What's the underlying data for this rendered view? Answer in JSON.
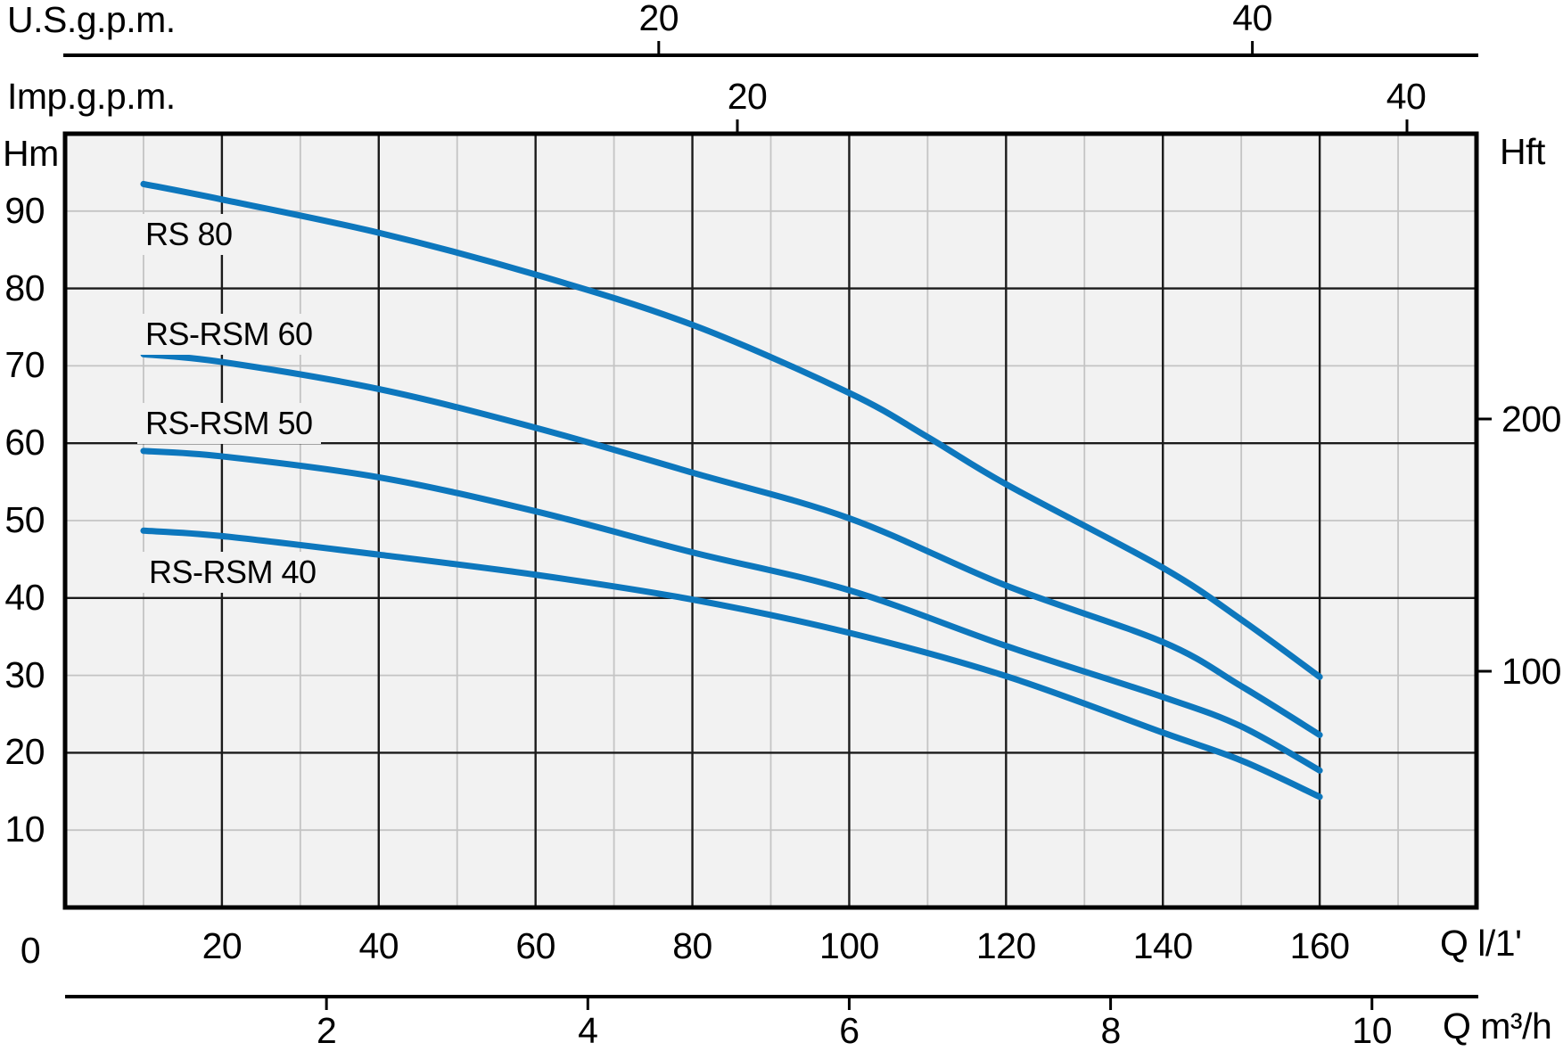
{
  "page": {
    "background": "#ffffff"
  },
  "colors": {
    "curve_blue": "#0d77bd",
    "plot_background": "#f2f2f2",
    "grid_light": "#c4c4c4",
    "grid_dark": "#1b1b1b",
    "axis_black": "#000000",
    "text": "#000000"
  },
  "labels": {
    "us_gpm_axis": "U.S.g.p.m.",
    "imp_gpm_axis": "Imp.g.p.m.",
    "head_m": "Hm",
    "head_ft": "Hft",
    "flow_lmin": "Q l/1'",
    "flow_m3h": "Q m³/h",
    "origin_zero": "0"
  },
  "chart_data": {
    "type": "line",
    "title": "",
    "x_axis": {
      "label": "Q l/1'",
      "unit": "litres per minute",
      "range": [
        0,
        180
      ],
      "ticks": [
        20,
        40,
        60,
        80,
        100,
        120,
        140,
        160
      ],
      "grid_step": 10,
      "grid": "on"
    },
    "y_axis": {
      "label": "Hm",
      "unit": "metres head",
      "range": [
        0,
        100
      ],
      "ticks": [
        90,
        80,
        70,
        60,
        50,
        40,
        30,
        20,
        10
      ],
      "grid_step": 10,
      "grid": "on"
    },
    "x_axis_top_us": {
      "label": "U.S.g.p.m.",
      "ticks": [
        20,
        40
      ]
    },
    "x_axis_top_imp": {
      "label": "Imp.g.p.m.",
      "ticks": [
        20,
        40
      ]
    },
    "x_axis_bottom_m3h": {
      "label": "Q m³/h",
      "ticks": [
        2,
        4,
        6,
        8,
        10
      ]
    },
    "y_axis_right_ft": {
      "label": "Hft",
      "ticks": [
        200,
        100
      ]
    },
    "legend_position": "labels-on-plot",
    "series": [
      {
        "name": "RS 80",
        "points": [
          [
            10,
            93.5
          ],
          [
            20,
            91.5
          ],
          [
            40,
            87.2
          ],
          [
            60,
            81.8
          ],
          [
            80,
            75.3
          ],
          [
            100,
            66.5
          ],
          [
            110,
            60.8
          ],
          [
            120,
            54.7
          ],
          [
            140,
            43.9
          ],
          [
            150,
            37.2
          ],
          [
            160,
            29.8
          ]
        ]
      },
      {
        "name": "RS-RSM 60",
        "points": [
          [
            10,
            71.5
          ],
          [
            20,
            70.5
          ],
          [
            40,
            67.0
          ],
          [
            60,
            62.0
          ],
          [
            80,
            56.2
          ],
          [
            100,
            50.3
          ],
          [
            120,
            41.6
          ],
          [
            140,
            34.3
          ],
          [
            150,
            28.6
          ],
          [
            160,
            22.3
          ]
        ]
      },
      {
        "name": "RS-RSM 50",
        "points": [
          [
            10,
            59.0
          ],
          [
            20,
            58.3
          ],
          [
            40,
            55.6
          ],
          [
            60,
            51.2
          ],
          [
            80,
            45.9
          ],
          [
            100,
            41.0
          ],
          [
            120,
            33.8
          ],
          [
            140,
            27.2
          ],
          [
            150,
            23.4
          ],
          [
            160,
            17.7
          ]
        ]
      },
      {
        "name": "RS-RSM 40",
        "points": [
          [
            10,
            48.7
          ],
          [
            20,
            48.0
          ],
          [
            40,
            45.6
          ],
          [
            60,
            43.0
          ],
          [
            80,
            39.8
          ],
          [
            100,
            35.5
          ],
          [
            120,
            29.9
          ],
          [
            140,
            22.6
          ],
          [
            150,
            19.0
          ],
          [
            160,
            14.3
          ]
        ]
      }
    ]
  }
}
